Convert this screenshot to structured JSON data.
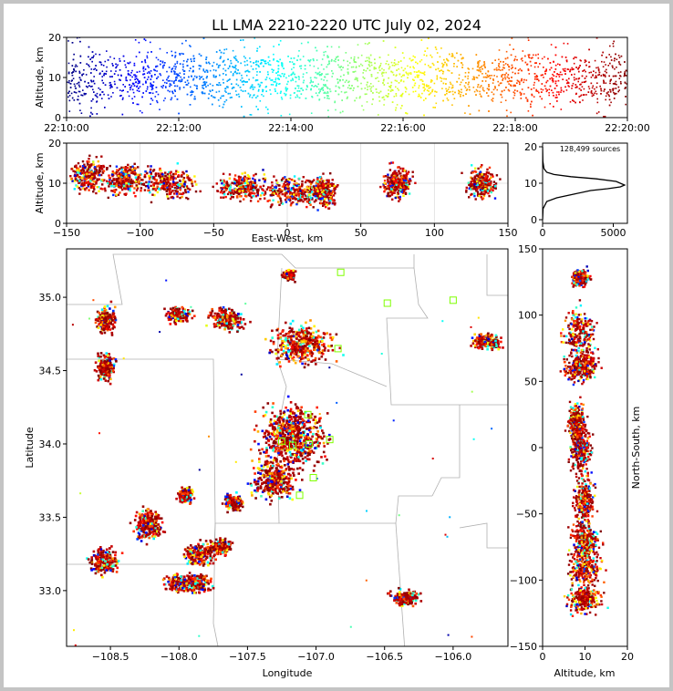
{
  "title": "LL LMA 2210-2220 UTC July 02, 2024",
  "source_count": "128,499 sources",
  "chart_data": [
    {
      "type": "scatter",
      "panel": "altitude-vs-time",
      "ylabel": "Altitude, km",
      "ylim": [
        0,
        20
      ],
      "yticks": [
        "0",
        "10",
        "20"
      ],
      "xticks": [
        "22:10:00",
        "22:12:00",
        "22:14:00",
        "22:16:00",
        "22:18:00",
        "22:20:00"
      ],
      "x_start_min": 0,
      "x_end_min": 10,
      "color_scale": "jet (time)",
      "core_altitude_km": [
        5,
        15
      ]
    },
    {
      "type": "scatter",
      "panel": "altitude-vs-east-west",
      "xlabel": "East-West, km",
      "ylabel": "Altitude, km",
      "xlim": [
        -150,
        150
      ],
      "ylim": [
        0,
        20
      ],
      "xticks": [
        "−150",
        "−100",
        "−50",
        "0",
        "50",
        "100",
        "150"
      ],
      "yticks": [
        "0",
        "10",
        "20"
      ],
      "clusters": [
        {
          "x": -135,
          "z": 12,
          "sx": 10,
          "sz": 3
        },
        {
          "x": -110,
          "z": 11,
          "sx": 12,
          "sz": 3
        },
        {
          "x": -80,
          "z": 10,
          "sx": 15,
          "sz": 3
        },
        {
          "x": -30,
          "z": 9,
          "sx": 15,
          "sz": 2.5
        },
        {
          "x": 5,
          "z": 8,
          "sx": 15,
          "sz": 3
        },
        {
          "x": 25,
          "z": 8,
          "sx": 8,
          "sz": 3
        },
        {
          "x": 75,
          "z": 10,
          "sx": 8,
          "sz": 3
        },
        {
          "x": 132,
          "z": 10,
          "sx": 8,
          "sz": 3
        }
      ]
    },
    {
      "type": "line",
      "panel": "source-count-vs-altitude",
      "xlim": [
        0,
        6000
      ],
      "ylim": [
        0,
        20
      ],
      "xticks": [
        "0",
        "5000"
      ],
      "yticks": [
        "0",
        "10",
        "20"
      ],
      "profile": [
        {
          "x": 0,
          "y": 0
        },
        {
          "x": 30,
          "y": 3
        },
        {
          "x": 300,
          "y": 5
        },
        {
          "x": 1000,
          "y": 6
        },
        {
          "x": 2200,
          "y": 7
        },
        {
          "x": 3400,
          "y": 8
        },
        {
          "x": 4600,
          "y": 8.5
        },
        {
          "x": 5500,
          "y": 9
        },
        {
          "x": 5800,
          "y": 9.5
        },
        {
          "x": 5200,
          "y": 10.5
        },
        {
          "x": 3800,
          "y": 11.2
        },
        {
          "x": 2000,
          "y": 11.8
        },
        {
          "x": 800,
          "y": 12.4
        },
        {
          "x": 300,
          "y": 13
        },
        {
          "x": 100,
          "y": 14
        },
        {
          "x": 20,
          "y": 16
        },
        {
          "x": 0,
          "y": 20
        }
      ]
    },
    {
      "type": "scatter",
      "panel": "plan-view-map",
      "xlabel": "Longitude",
      "ylabel": "Latitude",
      "xlim": [
        -108.82,
        -105.6
      ],
      "ylim": [
        32.62,
        35.33
      ],
      "xticks": [
        "−108.5",
        "−108.0",
        "−107.5",
        "−107.0",
        "−106.5",
        "−106.0"
      ],
      "yticks": [
        "33.0",
        "33.5",
        "34.0",
        "34.5",
        "35.0"
      ],
      "clusters": [
        {
          "lon": -108.53,
          "lat": 34.85,
          "rx": 0.07,
          "ry": 0.08
        },
        {
          "lon": -108.53,
          "lat": 34.52,
          "rx": 0.07,
          "ry": 0.08
        },
        {
          "lon": -108.0,
          "lat": 34.88,
          "rx": 0.08,
          "ry": 0.05
        },
        {
          "lon": -107.65,
          "lat": 34.85,
          "rx": 0.12,
          "ry": 0.07
        },
        {
          "lon": -107.1,
          "lat": 34.68,
          "rx": 0.2,
          "ry": 0.12
        },
        {
          "lon": -107.17,
          "lat": 34.05,
          "rx": 0.22,
          "ry": 0.2
        },
        {
          "lon": -107.3,
          "lat": 33.75,
          "rx": 0.15,
          "ry": 0.12
        },
        {
          "lon": -106.35,
          "lat": 32.95,
          "rx": 0.1,
          "ry": 0.05
        },
        {
          "lon": -105.75,
          "lat": 34.7,
          "rx": 0.1,
          "ry": 0.05
        },
        {
          "lon": -108.55,
          "lat": 33.2,
          "rx": 0.1,
          "ry": 0.08
        },
        {
          "lon": -108.22,
          "lat": 33.45,
          "rx": 0.1,
          "ry": 0.1
        },
        {
          "lon": -108.0,
          "lat": 33.05,
          "rx": 0.1,
          "ry": 0.05
        },
        {
          "lon": -107.85,
          "lat": 33.25,
          "rx": 0.1,
          "ry": 0.07
        },
        {
          "lon": -107.7,
          "lat": 33.3,
          "rx": 0.08,
          "ry": 0.05
        },
        {
          "lon": -107.85,
          "lat": 33.05,
          "rx": 0.08,
          "ry": 0.06
        },
        {
          "lon": -107.6,
          "lat": 33.6,
          "rx": 0.06,
          "ry": 0.05
        },
        {
          "lon": -107.95,
          "lat": 33.65,
          "rx": 0.05,
          "ry": 0.05
        },
        {
          "lon": -107.2,
          "lat": 35.15,
          "rx": 0.04,
          "ry": 0.03
        }
      ],
      "stations": [
        {
          "lon": -106.82,
          "lat": 35.17
        },
        {
          "lon": -106.48,
          "lat": 34.96
        },
        {
          "lon": -106.0,
          "lat": 34.98
        },
        {
          "lon": -106.84,
          "lat": 34.65
        },
        {
          "lon": -107.25,
          "lat": 34.02
        },
        {
          "lon": -107.17,
          "lat": 33.99
        },
        {
          "lon": -107.05,
          "lat": 34.0
        },
        {
          "lon": -106.9,
          "lat": 34.03
        },
        {
          "lon": -107.02,
          "lat": 33.77
        },
        {
          "lon": -107.12,
          "lat": 33.65
        },
        {
          "lon": -107.06,
          "lat": 34.2
        }
      ]
    },
    {
      "type": "scatter",
      "panel": "north-south-vs-altitude",
      "xlabel": "Altitude, km",
      "ylabel": "North-South, km",
      "xlim": [
        0,
        20
      ],
      "ylim": [
        -150,
        150
      ],
      "xticks": [
        "0",
        "10",
        "20"
      ],
      "yticks": [
        "−150",
        "−100",
        "−50",
        "0",
        "50",
        "100",
        "150"
      ],
      "clusters": [
        {
          "z": 9,
          "y": 128,
          "sz": 1.5,
          "sy": 5
        },
        {
          "z": 9,
          "y": 85,
          "sz": 3,
          "sy": 18
        },
        {
          "z": 9,
          "y": 60,
          "sz": 3,
          "sy": 8
        },
        {
          "z": 9,
          "y": 0,
          "sz": 2,
          "sy": 15
        },
        {
          "z": 8,
          "y": 20,
          "sz": 1.5,
          "sy": 10
        },
        {
          "z": 10,
          "y": -40,
          "sz": 2,
          "sy": 15
        },
        {
          "z": 10,
          "y": -70,
          "sz": 2.5,
          "sy": 10
        },
        {
          "z": 10,
          "y": -90,
          "sz": 3,
          "sy": 10
        },
        {
          "z": 10,
          "y": -115,
          "sz": 3,
          "sy": 8
        }
      ]
    }
  ]
}
